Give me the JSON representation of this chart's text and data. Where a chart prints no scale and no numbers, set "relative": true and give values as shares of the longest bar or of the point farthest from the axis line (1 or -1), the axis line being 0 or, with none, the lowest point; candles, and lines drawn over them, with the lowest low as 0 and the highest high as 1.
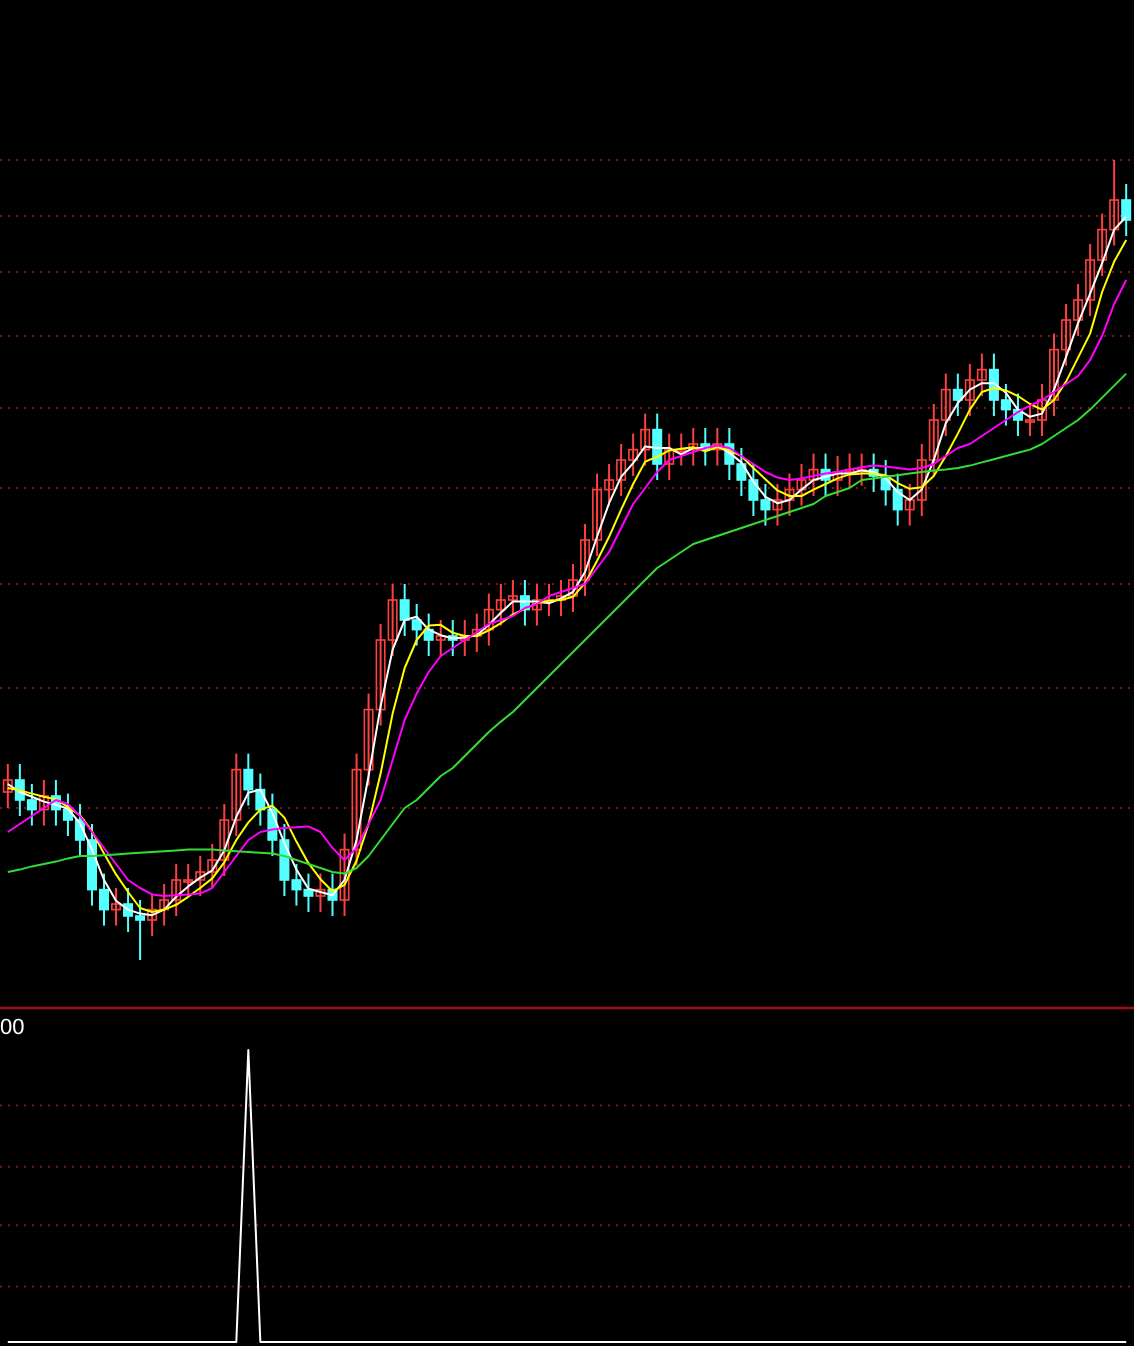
{
  "chart_data": [
    {
      "type": "candlestick",
      "relative": true,
      "ref_lines": [
        {
          "axis": "y",
          "value": 1,
          "color": "#7a1a1a",
          "line_style": "dotted"
        },
        {
          "axis": "y",
          "value": 0.93,
          "color": "#7a1a1a",
          "line_style": "dotted"
        },
        {
          "axis": "y",
          "value": 0.86,
          "color": "#7a1a1a",
          "line_style": "dotted"
        },
        {
          "axis": "y",
          "value": 0.78,
          "color": "#7a1a1a",
          "line_style": "dotted"
        },
        {
          "axis": "y",
          "value": 0.69,
          "color": "#7a1a1a",
          "line_style": "dotted"
        },
        {
          "axis": "y",
          "value": 0.59,
          "color": "#7a1a1a",
          "line_style": "dotted"
        },
        {
          "axis": "y",
          "value": 0.47,
          "color": "#7a1a1a",
          "line_style": "dotted"
        },
        {
          "axis": "y",
          "value": 0.34,
          "color": "#7a1a1a",
          "line_style": "dotted"
        },
        {
          "axis": "y",
          "value": 0.19,
          "color": "#7a1a1a",
          "line_style": "dotted"
        }
      ],
      "categories": [
        null,
        null,
        null,
        null,
        null,
        null,
        null,
        null,
        null,
        null,
        null,
        null,
        null,
        null,
        null,
        null,
        null,
        null,
        null,
        null,
        null,
        null,
        null,
        null,
        null,
        null,
        null,
        null,
        null,
        null,
        null,
        null,
        null,
        null,
        null,
        null,
        null,
        null,
        null,
        null,
        null,
        null,
        null,
        null,
        null,
        null,
        null,
        null,
        null,
        null,
        null,
        null,
        null,
        null,
        null,
        null,
        null,
        null,
        null,
        null,
        null,
        null,
        null,
        null,
        null,
        null,
        null,
        null,
        null,
        null,
        null,
        null,
        null,
        null,
        null,
        null,
        null,
        null,
        null,
        null,
        null,
        null,
        null,
        null,
        null,
        null,
        null,
        null,
        null,
        null,
        null,
        null,
        null,
        null
      ],
      "ohlc": [
        [
          0.21,
          0.245,
          0.19,
          0.225
        ],
        [
          0.225,
          0.245,
          0.18,
          0.2
        ],
        [
          0.2,
          0.22,
          0.168,
          0.188
        ],
        [
          0.188,
          0.225,
          0.168,
          0.205
        ],
        [
          0.205,
          0.225,
          0.168,
          0.188
        ],
        [
          0.188,
          0.208,
          0.155,
          0.175
        ],
        [
          0.175,
          0.195,
          0.13,
          0.15
        ],
        [
          0.15,
          0.17,
          0.068,
          0.088
        ],
        [
          0.088,
          0.108,
          0.043,
          0.063
        ],
        [
          0.063,
          0.09,
          0.043,
          0.07
        ],
        [
          0.07,
          0.09,
          0.035,
          0.055
        ],
        [
          0.055,
          0.075,
          0,
          0.05
        ],
        [
          0.05,
          0.083,
          0.03,
          0.063
        ],
        [
          0.063,
          0.095,
          0.043,
          0.075
        ],
        [
          0.075,
          0.12,
          0.055,
          0.1
        ],
        [
          0.1,
          0.12,
          0.08,
          0.1
        ],
        [
          0.1,
          0.13,
          0.08,
          0.11
        ],
        [
          0.11,
          0.145,
          0.09,
          0.125
        ],
        [
          0.125,
          0.195,
          0.105,
          0.175
        ],
        [
          0.175,
          0.258,
          0.155,
          0.238
        ],
        [
          0.238,
          0.258,
          0.193,
          0.213
        ],
        [
          0.213,
          0.233,
          0.168,
          0.188
        ],
        [
          0.188,
          0.208,
          0.13,
          0.15
        ],
        [
          0.15,
          0.17,
          0.08,
          0.1
        ],
        [
          0.1,
          0.12,
          0.068,
          0.088
        ],
        [
          0.088,
          0.108,
          0.06,
          0.08
        ],
        [
          0.08,
          0.108,
          0.06,
          0.088
        ],
        [
          0.088,
          0.108,
          0.055,
          0.075
        ],
        [
          0.075,
          0.158,
          0.055,
          0.138
        ],
        [
          0.138,
          0.258,
          0.118,
          0.238
        ],
        [
          0.238,
          0.333,
          0.218,
          0.313
        ],
        [
          0.313,
          0.42,
          0.293,
          0.4
        ],
        [
          0.4,
          0.47,
          0.38,
          0.45
        ],
        [
          0.45,
          0.47,
          0.405,
          0.425
        ],
        [
          0.425,
          0.445,
          0.393,
          0.413
        ],
        [
          0.413,
          0.433,
          0.38,
          0.4
        ],
        [
          0.4,
          0.425,
          0.38,
          0.405
        ],
        [
          0.405,
          0.425,
          0.38,
          0.4
        ],
        [
          0.4,
          0.425,
          0.38,
          0.405
        ],
        [
          0.405,
          0.433,
          0.385,
          0.413
        ],
        [
          0.413,
          0.458,
          0.393,
          0.438
        ],
        [
          0.438,
          0.47,
          0.418,
          0.45
        ],
        [
          0.45,
          0.475,
          0.43,
          0.455
        ],
        [
          0.455,
          0.475,
          0.418,
          0.438
        ],
        [
          0.438,
          0.47,
          0.418,
          0.45
        ],
        [
          0.45,
          0.47,
          0.43,
          0.45
        ],
        [
          0.45,
          0.475,
          0.43,
          0.455
        ],
        [
          0.455,
          0.495,
          0.435,
          0.475
        ],
        [
          0.475,
          0.545,
          0.455,
          0.525
        ],
        [
          0.525,
          0.608,
          0.505,
          0.588
        ],
        [
          0.588,
          0.62,
          0.568,
          0.6
        ],
        [
          0.6,
          0.645,
          0.58,
          0.625
        ],
        [
          0.625,
          0.658,
          0.605,
          0.638
        ],
        [
          0.638,
          0.683,
          0.618,
          0.663
        ],
        [
          0.663,
          0.683,
          0.6,
          0.62
        ],
        [
          0.62,
          0.658,
          0.6,
          0.638
        ],
        [
          0.638,
          0.658,
          0.618,
          0.638
        ],
        [
          0.638,
          0.665,
          0.618,
          0.645
        ],
        [
          0.645,
          0.665,
          0.618,
          0.638
        ],
        [
          0.638,
          0.665,
          0.618,
          0.645
        ],
        [
          0.645,
          0.665,
          0.6,
          0.62
        ],
        [
          0.62,
          0.64,
          0.58,
          0.6
        ],
        [
          0.6,
          0.62,
          0.555,
          0.575
        ],
        [
          0.575,
          0.595,
          0.543,
          0.563
        ],
        [
          0.563,
          0.595,
          0.543,
          0.575
        ],
        [
          0.575,
          0.608,
          0.555,
          0.588
        ],
        [
          0.588,
          0.62,
          0.568,
          0.6
        ],
        [
          0.6,
          0.633,
          0.58,
          0.613
        ],
        [
          0.613,
          0.633,
          0.58,
          0.6
        ],
        [
          0.6,
          0.63,
          0.58,
          0.61
        ],
        [
          0.61,
          0.633,
          0.59,
          0.613
        ],
        [
          0.613,
          0.633,
          0.593,
          0.613
        ],
        [
          0.613,
          0.633,
          0.585,
          0.605
        ],
        [
          0.605,
          0.625,
          0.568,
          0.588
        ],
        [
          0.588,
          0.608,
          0.543,
          0.563
        ],
        [
          0.563,
          0.595,
          0.543,
          0.575
        ],
        [
          0.575,
          0.645,
          0.555,
          0.625
        ],
        [
          0.625,
          0.695,
          0.605,
          0.675
        ],
        [
          0.675,
          0.733,
          0.655,
          0.713
        ],
        [
          0.713,
          0.733,
          0.68,
          0.7
        ],
        [
          0.7,
          0.745,
          0.68,
          0.725
        ],
        [
          0.725,
          0.758,
          0.705,
          0.738
        ],
        [
          0.738,
          0.758,
          0.68,
          0.7
        ],
        [
          0.7,
          0.72,
          0.668,
          0.688
        ],
        [
          0.688,
          0.708,
          0.655,
          0.675
        ],
        [
          0.675,
          0.695,
          0.655,
          0.675
        ],
        [
          0.675,
          0.72,
          0.655,
          0.7
        ],
        [
          0.7,
          0.783,
          0.68,
          0.763
        ],
        [
          0.763,
          0.82,
          0.743,
          0.8
        ],
        [
          0.8,
          0.845,
          0.78,
          0.825
        ],
        [
          0.825,
          0.895,
          0.805,
          0.875
        ],
        [
          0.875,
          0.933,
          0.855,
          0.913
        ],
        [
          0.913,
          1,
          0.893,
          0.95
        ],
        [
          0.95,
          0.97,
          0.905,
          0.925
        ]
      ],
      "series": [
        {
          "type": "line",
          "color": "#ffffff",
          "values": [
            0.22,
            0.21,
            0.204,
            0.198,
            0.194,
            0.189,
            0.171,
            0.138,
            0.1,
            0.074,
            0.063,
            0.058,
            0.056,
            0.063,
            0.079,
            0.092,
            0.103,
            0.112,
            0.137,
            0.179,
            0.209,
            0.213,
            0.184,
            0.146,
            0.113,
            0.089,
            0.085,
            0.081,
            0.1,
            0.15,
            0.23,
            0.317,
            0.388,
            0.425,
            0.429,
            0.413,
            0.406,
            0.402,
            0.403,
            0.406,
            0.419,
            0.434,
            0.448,
            0.448,
            0.448,
            0.446,
            0.452,
            0.46,
            0.485,
            0.529,
            0.571,
            0.604,
            0.621,
            0.642,
            0.64,
            0.64,
            0.632,
            0.64,
            0.64,
            0.643,
            0.634,
            0.622,
            0.598,
            0.579,
            0.571,
            0.575,
            0.588,
            0.6,
            0.604,
            0.608,
            0.608,
            0.612,
            0.61,
            0.602,
            0.585,
            0.575,
            0.588,
            0.625,
            0.671,
            0.696,
            0.713,
            0.721,
            0.721,
            0.709,
            0.688,
            0.679,
            0.683,
            0.713,
            0.754,
            0.796,
            0.833,
            0.871,
            0.913,
            0.929
          ]
        },
        {
          "type": "line",
          "color": "#ffff00",
          "values": [
            0.215,
            0.212,
            0.208,
            0.204,
            0.201,
            0.191,
            0.181,
            0.161,
            0.133,
            0.107,
            0.085,
            0.065,
            0.06,
            0.063,
            0.069,
            0.079,
            0.09,
            0.102,
            0.122,
            0.15,
            0.172,
            0.188,
            0.193,
            0.178,
            0.148,
            0.121,
            0.101,
            0.086,
            0.094,
            0.124,
            0.17,
            0.233,
            0.308,
            0.365,
            0.4,
            0.418,
            0.419,
            0.409,
            0.405,
            0.405,
            0.412,
            0.421,
            0.432,
            0.439,
            0.446,
            0.449,
            0.45,
            0.454,
            0.471,
            0.499,
            0.529,
            0.563,
            0.595,
            0.623,
            0.629,
            0.637,
            0.639,
            0.641,
            0.636,
            0.641,
            0.637,
            0.63,
            0.615,
            0.601,
            0.587,
            0.58,
            0.58,
            0.588,
            0.595,
            0.602,
            0.607,
            0.608,
            0.608,
            0.606,
            0.596,
            0.589,
            0.591,
            0.605,
            0.63,
            0.658,
            0.688,
            0.71,
            0.715,
            0.712,
            0.705,
            0.695,
            0.688,
            0.7,
            0.723,
            0.753,
            0.783,
            0.835,
            0.873,
            0.9
          ]
        },
        {
          "type": "line",
          "color": "#ff00ff",
          "values": [
            0.16,
            0.17,
            0.18,
            0.19,
            0.2,
            0.195,
            0.18,
            0.16,
            0.14,
            0.12,
            0.1,
            0.09,
            0.082,
            0.08,
            0.081,
            0.082,
            0.083,
            0.09,
            0.11,
            0.13,
            0.15,
            0.16,
            0.163,
            0.165,
            0.166,
            0.167,
            0.16,
            0.14,
            0.125,
            0.14,
            0.17,
            0.2,
            0.25,
            0.3,
            0.333,
            0.36,
            0.38,
            0.39,
            0.4,
            0.41,
            0.42,
            0.425,
            0.43,
            0.44,
            0.445,
            0.455,
            0.46,
            0.465,
            0.47,
            0.49,
            0.51,
            0.54,
            0.57,
            0.59,
            0.61,
            0.625,
            0.63,
            0.635,
            0.64,
            0.643,
            0.64,
            0.63,
            0.62,
            0.61,
            0.603,
            0.6,
            0.602,
            0.605,
            0.608,
            0.61,
            0.613,
            0.616,
            0.618,
            0.617,
            0.615,
            0.613,
            0.615,
            0.62,
            0.63,
            0.64,
            0.645,
            0.655,
            0.665,
            0.675,
            0.685,
            0.693,
            0.7,
            0.71,
            0.72,
            0.73,
            0.75,
            0.78,
            0.82,
            0.85
          ]
        },
        {
          "type": "line",
          "color": "#33dd33",
          "values": [
            0.11,
            0.113,
            0.117,
            0.12,
            0.123,
            0.127,
            0.13,
            0.13,
            0.131,
            0.132,
            0.133,
            0.134,
            0.135,
            0.136,
            0.137,
            0.138,
            0.138,
            0.138,
            0.137,
            0.136,
            0.135,
            0.134,
            0.133,
            0.13,
            0.125,
            0.12,
            0.115,
            0.11,
            0.108,
            0.115,
            0.13,
            0.15,
            0.17,
            0.19,
            0.2,
            0.215,
            0.23,
            0.24,
            0.255,
            0.27,
            0.285,
            0.298,
            0.31,
            0.325,
            0.34,
            0.355,
            0.37,
            0.385,
            0.4,
            0.415,
            0.43,
            0.445,
            0.46,
            0.475,
            0.49,
            0.5,
            0.51,
            0.52,
            0.525,
            0.53,
            0.535,
            0.54,
            0.545,
            0.55,
            0.555,
            0.56,
            0.565,
            0.57,
            0.58,
            0.585,
            0.59,
            0.6,
            0.602,
            0.604,
            0.606,
            0.608,
            0.61,
            0.612,
            0.613,
            0.615,
            0.618,
            0.622,
            0.626,
            0.63,
            0.634,
            0.638,
            0.645,
            0.655,
            0.665,
            0.675,
            0.688,
            0.703,
            0.718,
            0.733
          ]
        }
      ]
    },
    {
      "type": "line",
      "relative": true,
      "annotations": [
        "00"
      ],
      "ref_lines": [
        {
          "axis": "y",
          "value": 0.81,
          "color": "#7a1a1a",
          "line_style": "dotted"
        },
        {
          "axis": "y",
          "value": 0.6,
          "color": "#7a1a1a",
          "line_style": "dotted"
        },
        {
          "axis": "y",
          "value": 0.4,
          "color": "#7a1a1a",
          "line_style": "dotted"
        },
        {
          "axis": "y",
          "value": 0.19,
          "color": "#7a1a1a",
          "line_style": "dotted"
        }
      ],
      "categories": [
        null,
        null,
        null,
        null,
        null,
        null,
        null,
        null,
        null,
        null,
        null,
        null,
        null,
        null,
        null,
        null,
        null,
        null,
        null,
        null,
        null,
        null,
        null,
        null,
        null,
        null,
        null,
        null,
        null,
        null,
        null,
        null,
        null,
        null,
        null,
        null,
        null,
        null,
        null,
        null,
        null,
        null,
        null,
        null,
        null,
        null,
        null,
        null,
        null,
        null,
        null,
        null,
        null,
        null,
        null,
        null,
        null,
        null,
        null,
        null,
        null,
        null,
        null,
        null,
        null,
        null,
        null,
        null,
        null,
        null,
        null,
        null,
        null,
        null,
        null,
        null,
        null,
        null,
        null,
        null,
        null,
        null,
        null,
        null,
        null,
        null,
        null,
        null,
        null,
        null,
        null,
        null,
        null,
        null
      ],
      "series": [
        {
          "color": "#ffffff",
          "values": [
            0,
            0,
            0,
            0,
            0,
            0,
            0,
            0,
            0,
            0,
            0,
            0,
            0,
            0,
            0,
            0,
            0,
            0,
            0,
            0,
            1,
            0,
            0,
            0,
            0,
            0,
            0,
            0,
            0,
            0,
            0,
            0,
            0,
            0,
            0,
            0,
            0,
            0,
            0,
            0,
            0,
            0,
            0,
            0,
            0,
            0,
            0,
            0,
            0,
            0,
            0,
            0,
            0,
            0,
            0,
            0,
            0,
            0,
            0,
            0,
            0,
            0,
            0,
            0,
            0,
            0,
            0,
            0,
            0,
            0,
            0,
            0,
            0,
            0,
            0,
            0,
            0,
            0,
            0,
            0,
            0,
            0,
            0,
            0,
            0,
            0,
            0,
            0,
            0,
            0,
            0,
            0,
            0,
            0
          ]
        }
      ]
    }
  ]
}
